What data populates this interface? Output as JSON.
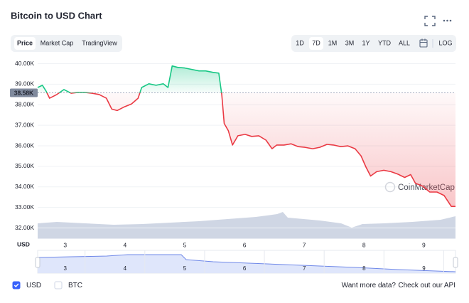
{
  "header": {
    "title": "Bitcoin to USD Chart"
  },
  "tabs": [
    "Price",
    "Market Cap",
    "TradingView"
  ],
  "active_tab": 0,
  "ranges": [
    "1D",
    "7D",
    "1M",
    "3M",
    "1Y",
    "YTD",
    "ALL"
  ],
  "active_range": 1,
  "log_button": "LOG",
  "chart_data": {
    "type": "line",
    "x": [
      2.54,
      2.62,
      2.68,
      2.74,
      2.86,
      2.98,
      3.1,
      3.21,
      3.33,
      3.45,
      3.57,
      3.69,
      3.78,
      3.87,
      3.99,
      4.11,
      4.22,
      4.28,
      4.4,
      4.52,
      4.64,
      4.72,
      4.79,
      4.88,
      5.0,
      5.12,
      5.24,
      5.35,
      5.47,
      5.57,
      5.62,
      5.66,
      5.73,
      5.8,
      5.89,
      6.01,
      6.12,
      6.24,
      6.36,
      6.46,
      6.54,
      6.66,
      6.78,
      6.9,
      7.01,
      7.14,
      7.26,
      7.38,
      7.49,
      7.61,
      7.73,
      7.85,
      7.95,
      8.03,
      8.11,
      8.21,
      8.33,
      8.45,
      8.56,
      8.68,
      8.78,
      8.86,
      8.98,
      9.1,
      9.22,
      9.34,
      9.46,
      9.53
    ],
    "values": [
      38840,
      38950,
      38670,
      38320,
      38500,
      38740,
      38560,
      38600,
      38600,
      38560,
      38500,
      38320,
      37790,
      37720,
      37900,
      38040,
      38320,
      38840,
      39020,
      38950,
      39020,
      38840,
      39890,
      39820,
      39790,
      39720,
      39650,
      39650,
      39580,
      39540,
      38490,
      37090,
      36740,
      36040,
      36490,
      36560,
      36460,
      36490,
      36280,
      35860,
      36040,
      36040,
      36100,
      35960,
      35930,
      35860,
      35930,
      36070,
      36040,
      35960,
      36000,
      35860,
      35510,
      34980,
      34530,
      34740,
      34810,
      34740,
      34630,
      34460,
      34600,
      34180,
      34040,
      33750,
      33750,
      33580,
      33050,
      33050
    ],
    "up_color": "#16c784",
    "down_color": "#ea3943",
    "reference": {
      "value": 38580,
      "label": "38.58K"
    },
    "currency_label": "USD",
    "watermark": "CoinMarketCap",
    "xlim": [
      2.54,
      9.53
    ],
    "xticks": [
      3,
      4,
      5,
      6,
      7,
      8,
      9
    ],
    "ylim": [
      31500,
      40400
    ],
    "yticks": [
      {
        "value": 40000,
        "label": "40.00K"
      },
      {
        "value": 39000,
        "label": "39.00K"
      },
      {
        "value": 38000,
        "label": "38.00K"
      },
      {
        "value": 37000,
        "label": "37.00K"
      },
      {
        "value": 36000,
        "label": "36.00K"
      },
      {
        "value": 35000,
        "label": "35.00K"
      },
      {
        "value": 34000,
        "label": "34.00K"
      },
      {
        "value": 33000,
        "label": "33.00K"
      },
      {
        "value": 32000,
        "label": "32.00K"
      }
    ],
    "grid": true
  },
  "footer": {
    "options": [
      {
        "label": "USD",
        "checked": true
      },
      {
        "label": "BTC",
        "checked": false
      }
    ],
    "prompt": "Want more data?",
    "link": "Check out our API"
  }
}
